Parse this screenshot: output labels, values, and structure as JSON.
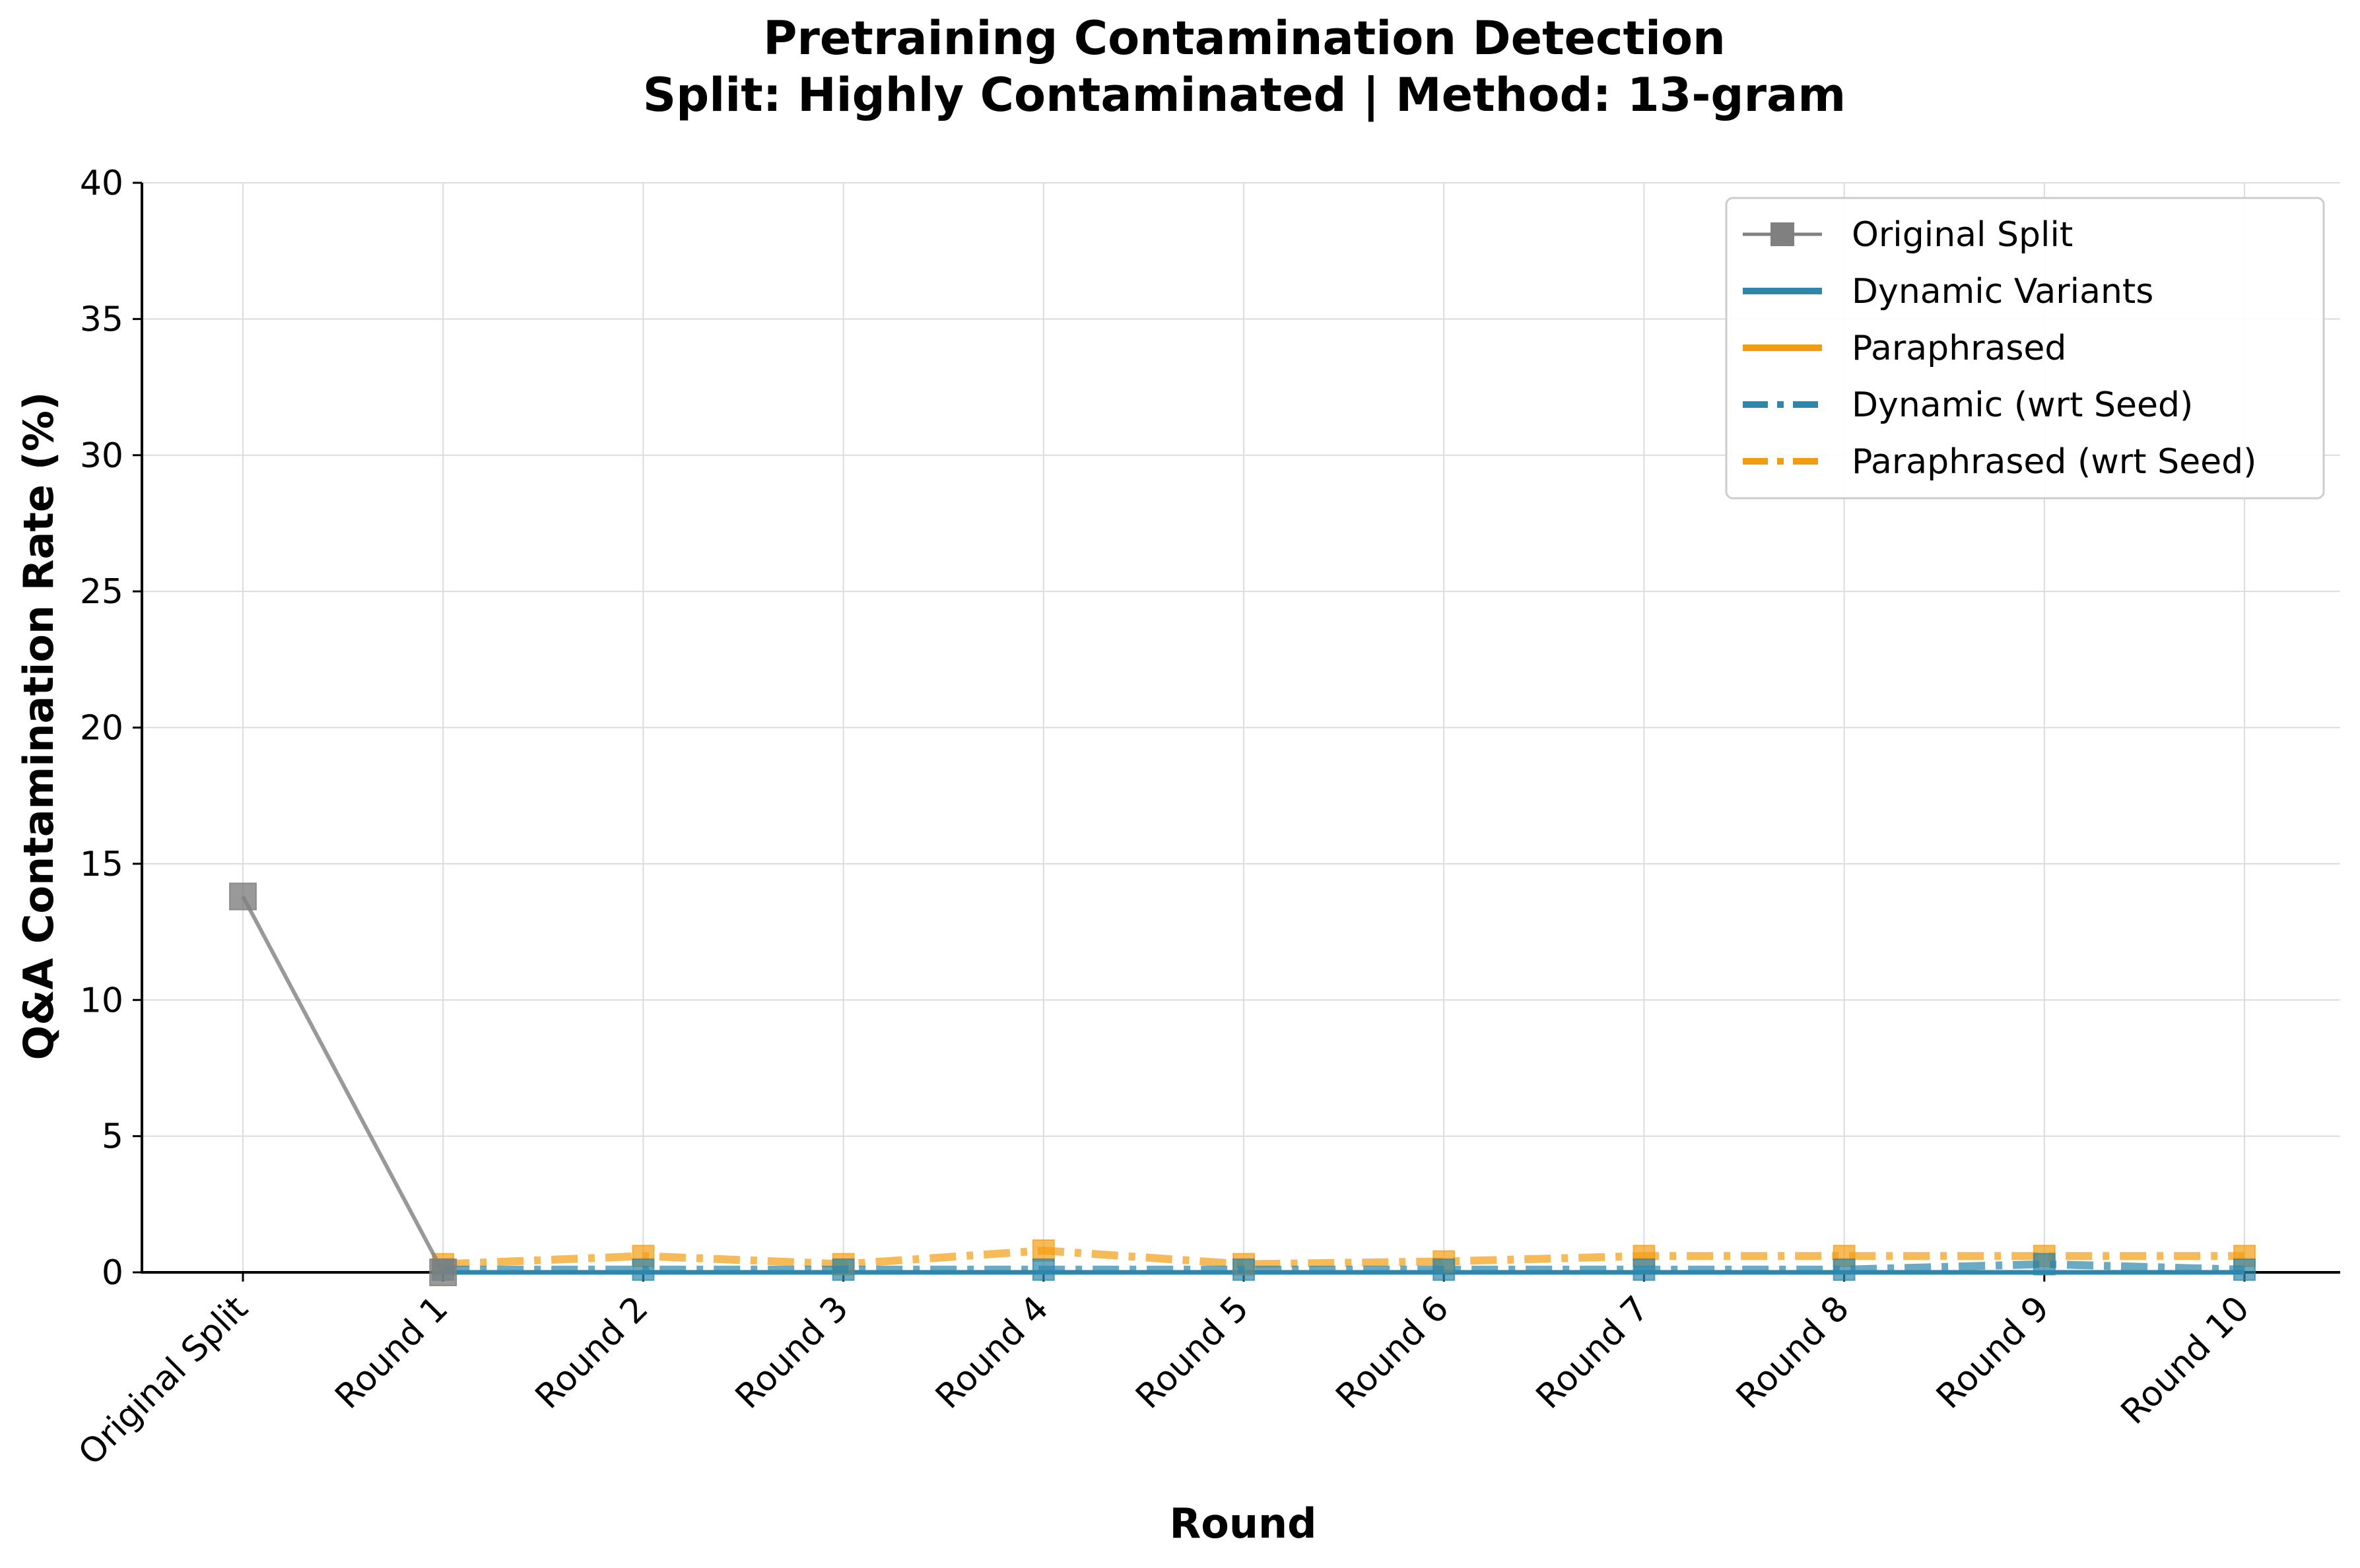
{
  "chart_data": {
    "type": "line",
    "title": "Pretraining Contamination Detection",
    "subtitle": "Split: Highly Contaminated | Method: 13-gram",
    "xlabel": "Round",
    "ylabel": "Q&A Contamination Rate (%)",
    "categories": [
      "Original Split",
      "Round 1",
      "Round 2",
      "Round 3",
      "Round 4",
      "Round 5",
      "Round 6",
      "Round 7",
      "Round 8",
      "Round 9",
      "Round 10"
    ],
    "ylim": [
      0,
      40
    ],
    "yticks": [
      0,
      5,
      10,
      15,
      20,
      25,
      30,
      35,
      40
    ],
    "grid": true,
    "legend_position": "top-right",
    "series": [
      {
        "name": "Original Split",
        "color": "#808080",
        "style": "solid",
        "marker": "square",
        "values": [
          13.8,
          0.0,
          null,
          null,
          null,
          null,
          null,
          null,
          null,
          null,
          null
        ]
      },
      {
        "name": "Dynamic Variants",
        "color": "#2e86ab",
        "style": "solid",
        "marker": "none",
        "values": [
          null,
          0.0,
          0.0,
          0.0,
          0.0,
          0.0,
          0.0,
          0.0,
          0.0,
          0.0,
          0.0
        ]
      },
      {
        "name": "Paraphrased",
        "color": "#f39c12",
        "style": "solid",
        "marker": "none",
        "values": [
          null,
          0.0,
          0.0,
          0.0,
          0.0,
          0.0,
          0.0,
          0.0,
          0.0,
          0.0,
          0.0
        ]
      },
      {
        "name": "Dynamic (wrt Seed)",
        "color": "#2e86ab",
        "style": "dashdot",
        "marker": "square",
        "values": [
          null,
          0.1,
          0.1,
          0.1,
          0.1,
          0.1,
          0.1,
          0.1,
          0.1,
          0.3,
          0.1
        ]
      },
      {
        "name": "Paraphrased (wrt Seed)",
        "color": "#f39c12",
        "style": "dashdot",
        "marker": "square",
        "values": [
          null,
          0.3,
          0.6,
          0.3,
          0.8,
          0.3,
          0.4,
          0.6,
          0.6,
          0.6,
          0.6
        ]
      }
    ]
  }
}
